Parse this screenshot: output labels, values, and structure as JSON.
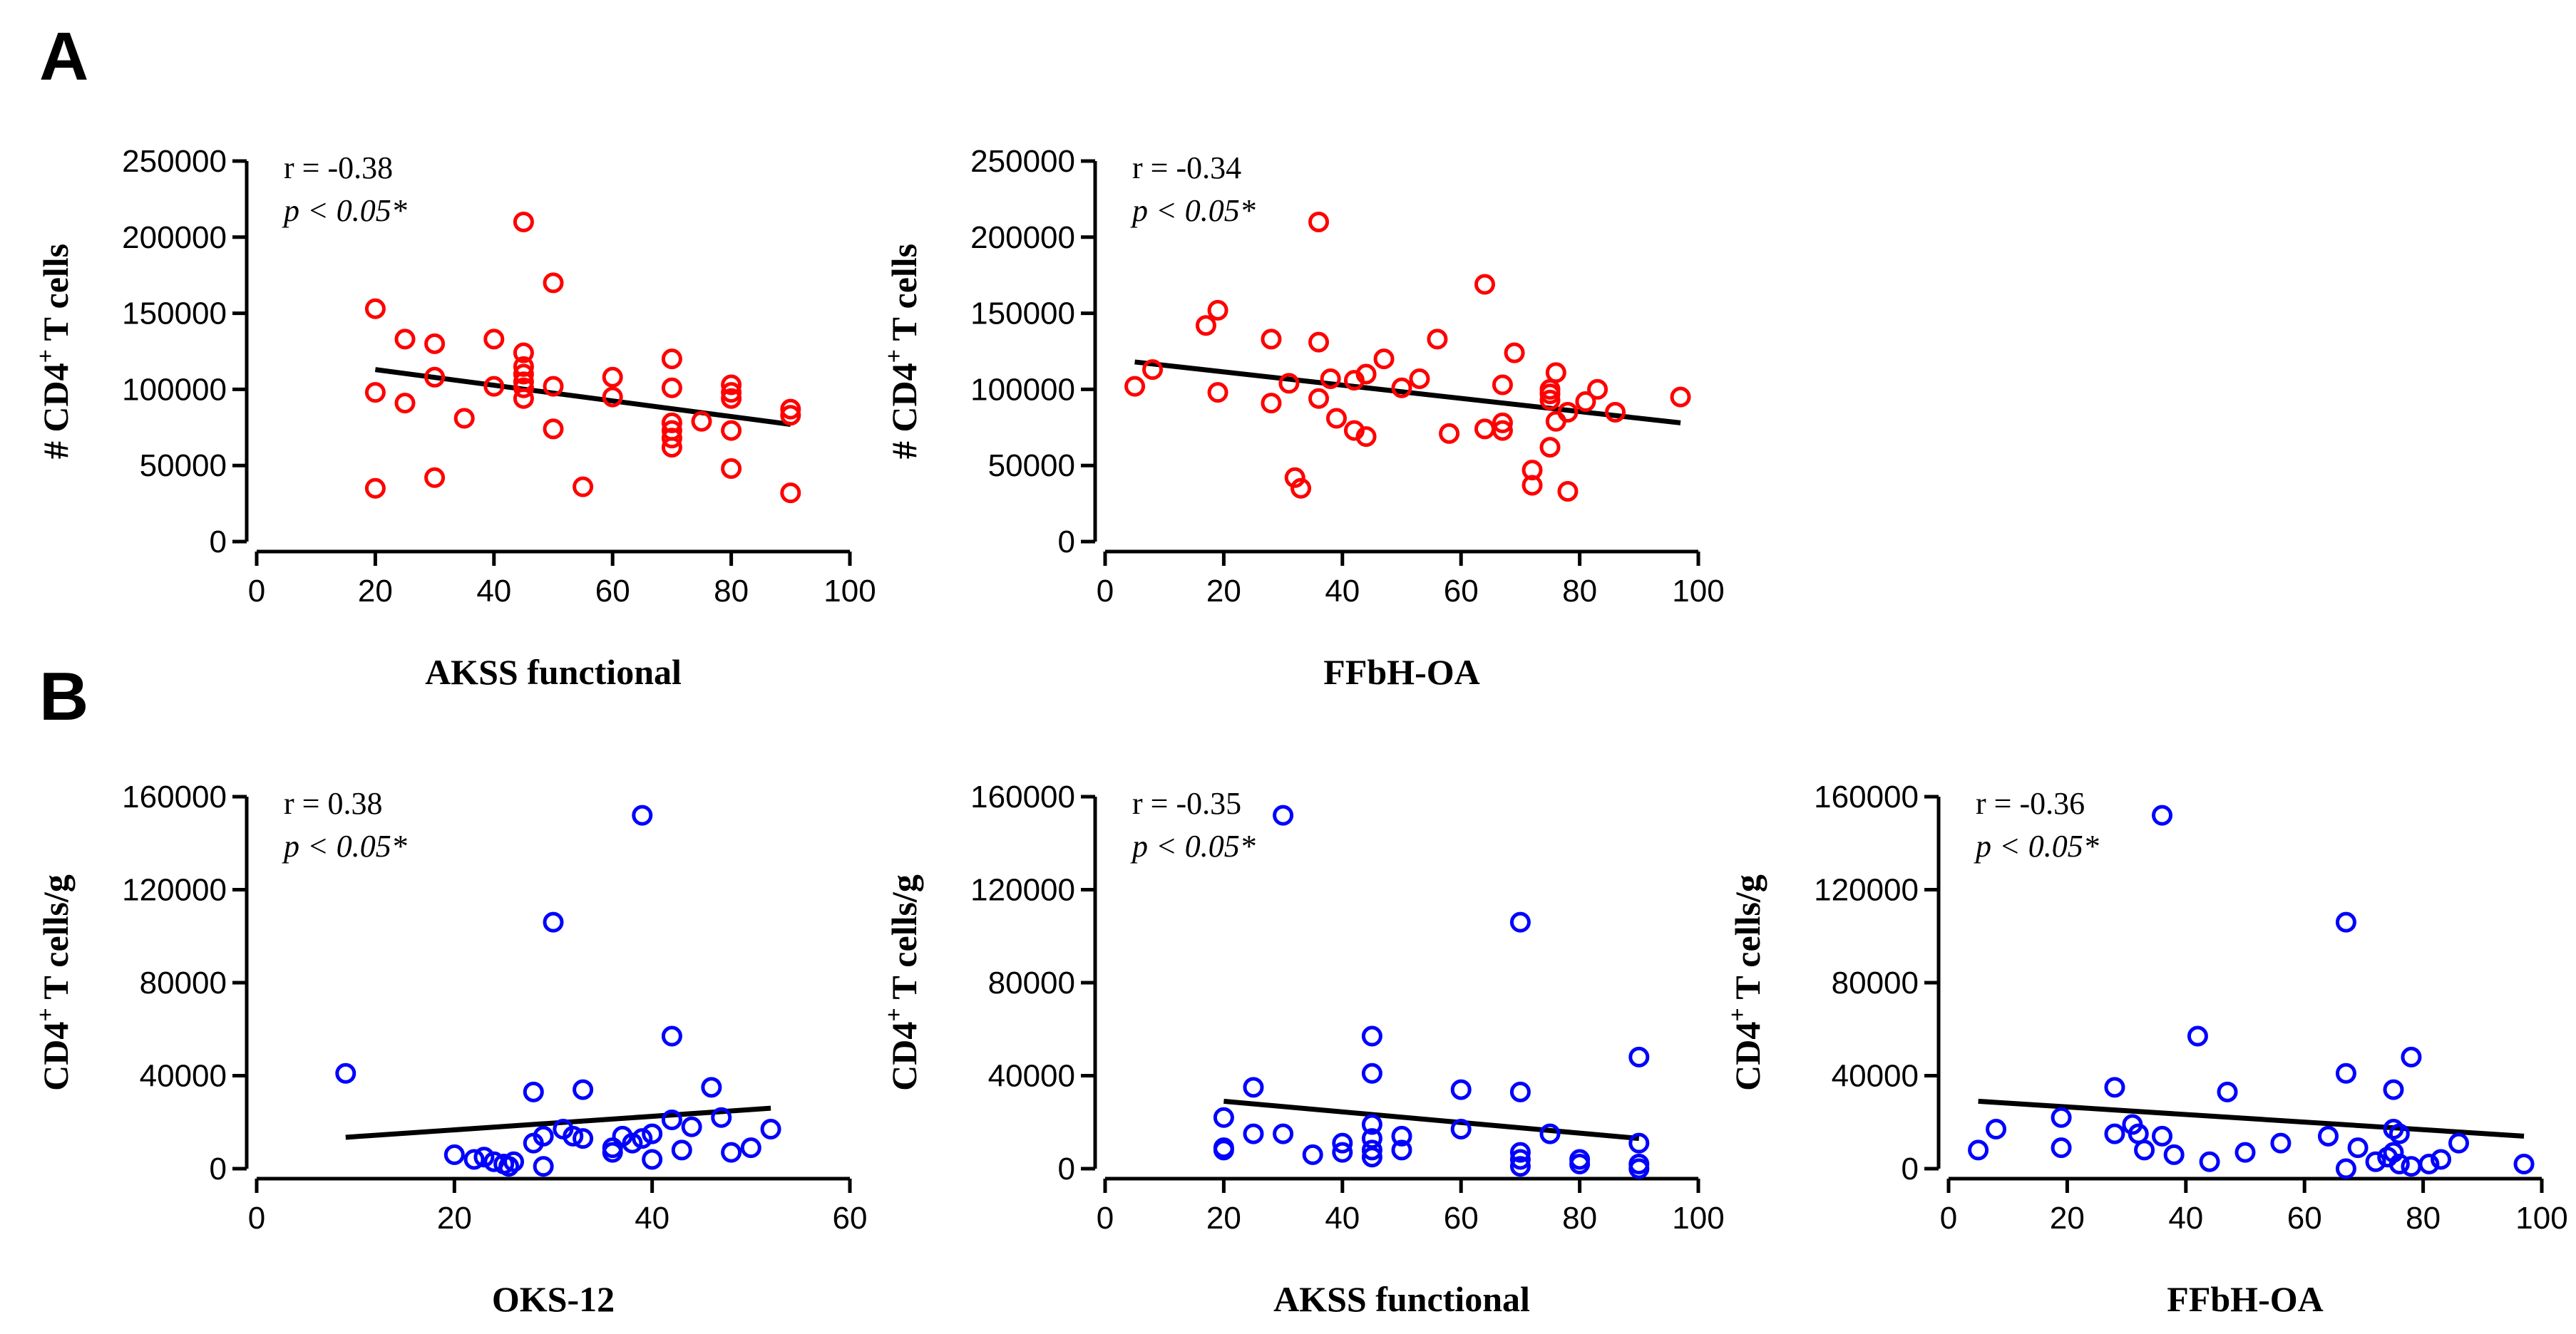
{
  "figure": {
    "panel_labels": [
      "A",
      "B"
    ]
  },
  "chart_data": [
    {
      "type": "scatter",
      "panel": "A",
      "title": "",
      "xlabel": "AKSS functional",
      "ylabel": "# CD4",
      "ylabel_sup": "+",
      "ylabel_tail": " T cells",
      "xlim": [
        0,
        100
      ],
      "ylim": [
        0,
        250000
      ],
      "xticks": [
        0,
        20,
        40,
        60,
        80,
        100
      ],
      "yticks": [
        0,
        50000,
        100000,
        150000,
        200000,
        250000
      ],
      "xtick_labels": [
        "0",
        "20",
        "40",
        "60",
        "80",
        "100"
      ],
      "ytick_labels": [
        "0",
        "50000",
        "100000",
        "150000",
        "200000",
        "250000"
      ],
      "marker_color": "#ff0000",
      "r_text": "r = -0.38",
      "p_text": "p < 0.05*",
      "trendline": {
        "x": [
          20,
          90
        ],
        "y": [
          113000,
          77000
        ]
      },
      "points": [
        [
          20,
          153000
        ],
        [
          20,
          98000
        ],
        [
          20,
          35000
        ],
        [
          25,
          133000
        ],
        [
          25,
          91000
        ],
        [
          30,
          130000
        ],
        [
          30,
          108000
        ],
        [
          30,
          42000
        ],
        [
          35,
          81000
        ],
        [
          40,
          133000
        ],
        [
          40,
          102000
        ],
        [
          45,
          210000
        ],
        [
          45,
          124000
        ],
        [
          45,
          115000
        ],
        [
          45,
          110000
        ],
        [
          45,
          105000
        ],
        [
          45,
          101000
        ],
        [
          45,
          94000
        ],
        [
          50,
          170000
        ],
        [
          50,
          102000
        ],
        [
          50,
          74000
        ],
        [
          55,
          36000
        ],
        [
          60,
          108000
        ],
        [
          60,
          95000
        ],
        [
          70,
          120000
        ],
        [
          70,
          101000
        ],
        [
          70,
          78000
        ],
        [
          70,
          73000
        ],
        [
          70,
          68000
        ],
        [
          70,
          62000
        ],
        [
          75,
          79000
        ],
        [
          80,
          103000
        ],
        [
          80,
          98000
        ],
        [
          80,
          94000
        ],
        [
          80,
          73000
        ],
        [
          80,
          48000
        ],
        [
          90,
          87000
        ],
        [
          90,
          83000
        ],
        [
          90,
          32000
        ]
      ]
    },
    {
      "type": "scatter",
      "panel": "A",
      "title": "",
      "xlabel": "FFbH-OA",
      "ylabel": "# CD4",
      "ylabel_sup": "+",
      "ylabel_tail": " T cells",
      "xlim": [
        0,
        100
      ],
      "ylim": [
        0,
        250000
      ],
      "xticks": [
        0,
        20,
        40,
        60,
        80,
        100
      ],
      "yticks": [
        0,
        50000,
        100000,
        150000,
        200000,
        250000
      ],
      "xtick_labels": [
        "0",
        "20",
        "40",
        "60",
        "80",
        "100"
      ],
      "ytick_labels": [
        "0",
        "50000",
        "100000",
        "150000",
        "200000",
        "250000"
      ],
      "marker_color": "#ff0000",
      "r_text": "r = -0.34",
      "p_text": "p < 0.05*",
      "trendline": {
        "x": [
          5,
          97
        ],
        "y": [
          118000,
          78000
        ]
      },
      "points": [
        [
          5,
          102000
        ],
        [
          8,
          113000
        ],
        [
          17,
          142000
        ],
        [
          19,
          152000
        ],
        [
          19,
          98000
        ],
        [
          28,
          133000
        ],
        [
          28,
          91000
        ],
        [
          31,
          104000
        ],
        [
          32,
          42000
        ],
        [
          33,
          35000
        ],
        [
          36,
          210000
        ],
        [
          36,
          131000
        ],
        [
          36,
          94000
        ],
        [
          38,
          107000
        ],
        [
          39,
          81000
        ],
        [
          42,
          106000
        ],
        [
          42,
          73000
        ],
        [
          44,
          110000
        ],
        [
          44,
          69000
        ],
        [
          47,
          120000
        ],
        [
          50,
          101000
        ],
        [
          53,
          107000
        ],
        [
          56,
          133000
        ],
        [
          58,
          71000
        ],
        [
          64,
          169000
        ],
        [
          64,
          74000
        ],
        [
          67,
          103000
        ],
        [
          67,
          78000
        ],
        [
          67,
          73000
        ],
        [
          69,
          124000
        ],
        [
          72,
          47000
        ],
        [
          72,
          37000
        ],
        [
          75,
          97000
        ],
        [
          75,
          93000
        ],
        [
          75,
          100000
        ],
        [
          75,
          62000
        ],
        [
          76,
          111000
        ],
        [
          76,
          79000
        ],
        [
          78,
          85000
        ],
        [
          78,
          33000
        ],
        [
          81,
          92000
        ],
        [
          83,
          100000
        ],
        [
          86,
          85000
        ],
        [
          97,
          95000
        ]
      ]
    },
    {
      "type": "scatter",
      "panel": "B",
      "title": "",
      "xlabel": "OKS-12",
      "ylabel": "CD4",
      "ylabel_sup": "+",
      "ylabel_tail": " T cells/g",
      "xlim": [
        0,
        60
      ],
      "ylim": [
        0,
        160000
      ],
      "xticks": [
        0,
        20,
        40,
        60
      ],
      "yticks": [
        0,
        40000,
        80000,
        120000,
        160000
      ],
      "xtick_labels": [
        "0",
        "20",
        "40",
        "60"
      ],
      "ytick_labels": [
        "0",
        "40000",
        "80000",
        "120000",
        "160000"
      ],
      "marker_color": "#0000ff",
      "r_text": "r = 0.38",
      "p_text": "p < 0.05*",
      "trendline": {
        "x": [
          9,
          52
        ],
        "y": [
          13500,
          26000
        ]
      },
      "points": [
        [
          9,
          41000
        ],
        [
          20,
          6000
        ],
        [
          22,
          4000
        ],
        [
          23,
          5000
        ],
        [
          24,
          3000
        ],
        [
          25,
          2000
        ],
        [
          25.5,
          1000
        ],
        [
          26,
          3000
        ],
        [
          28,
          33000
        ],
        [
          28,
          11000
        ],
        [
          29,
          14000
        ],
        [
          29,
          1000
        ],
        [
          30,
          106000
        ],
        [
          31,
          17000
        ],
        [
          32,
          14000
        ],
        [
          33,
          13000
        ],
        [
          33,
          34000
        ],
        [
          36,
          7000
        ],
        [
          36,
          9000
        ],
        [
          37,
          14000
        ],
        [
          38,
          11000
        ],
        [
          39,
          152000
        ],
        [
          39,
          13000
        ],
        [
          40,
          15000
        ],
        [
          40,
          4000
        ],
        [
          42,
          57000
        ],
        [
          42,
          21000
        ],
        [
          43,
          8000
        ],
        [
          44,
          18000
        ],
        [
          46,
          35000
        ],
        [
          47,
          22000
        ],
        [
          48,
          7000
        ],
        [
          50,
          9000
        ],
        [
          52,
          17000
        ]
      ]
    },
    {
      "type": "scatter",
      "panel": "B",
      "title": "",
      "xlabel": "AKSS functional",
      "ylabel": "CD4",
      "ylabel_sup": "+",
      "ylabel_tail": " T cells/g",
      "xlim": [
        0,
        100
      ],
      "ylim": [
        0,
        160000
      ],
      "xticks": [
        0,
        20,
        40,
        60,
        80,
        100
      ],
      "yticks": [
        0,
        40000,
        80000,
        120000,
        160000
      ],
      "xtick_labels": [
        "0",
        "20",
        "40",
        "60",
        "80",
        "100"
      ],
      "ytick_labels": [
        "0",
        "40000",
        "80000",
        "120000",
        "160000"
      ],
      "marker_color": "#0000ff",
      "r_text": "r = -0.35",
      "p_text": "p < 0.05*",
      "trendline": {
        "x": [
          20,
          90
        ],
        "y": [
          29000,
          13000
        ]
      },
      "points": [
        [
          20,
          22000
        ],
        [
          20,
          9000
        ],
        [
          20,
          8000
        ],
        [
          25,
          35000
        ],
        [
          25,
          15000
        ],
        [
          30,
          152000
        ],
        [
          30,
          15000
        ],
        [
          35,
          6000
        ],
        [
          40,
          11000
        ],
        [
          40,
          7000
        ],
        [
          45,
          57000
        ],
        [
          45,
          41000
        ],
        [
          45,
          19000
        ],
        [
          45,
          13000
        ],
        [
          45,
          8000
        ],
        [
          45,
          5000
        ],
        [
          50,
          14000
        ],
        [
          50,
          8000
        ],
        [
          60,
          34000
        ],
        [
          60,
          17000
        ],
        [
          70,
          106000
        ],
        [
          70,
          33000
        ],
        [
          70,
          7000
        ],
        [
          70,
          4000
        ],
        [
          70,
          1000
        ],
        [
          75,
          15000
        ],
        [
          80,
          4000
        ],
        [
          80,
          2000
        ],
        [
          90,
          48000
        ],
        [
          90,
          11000
        ],
        [
          90,
          2000
        ],
        [
          90,
          0
        ]
      ]
    },
    {
      "type": "scatter",
      "panel": "B",
      "title": "",
      "xlabel": "FFbH-OA",
      "ylabel": "CD4",
      "ylabel_sup": "+",
      "ylabel_tail": " T cells/g",
      "xlim": [
        0,
        100
      ],
      "ylim": [
        0,
        160000
      ],
      "xticks": [
        0,
        20,
        40,
        60,
        80,
        100
      ],
      "yticks": [
        0,
        40000,
        80000,
        120000,
        160000
      ],
      "xtick_labels": [
        "0",
        "20",
        "40",
        "60",
        "80",
        "100"
      ],
      "ytick_labels": [
        "0",
        "40000",
        "80000",
        "120000",
        "160000"
      ],
      "marker_color": "#0000ff",
      "r_text": "r = -0.36",
      "p_text": "p < 0.05*",
      "trendline": {
        "x": [
          5,
          97
        ],
        "y": [
          29000,
          14000
        ]
      },
      "points": [
        [
          5,
          8000
        ],
        [
          8,
          17000
        ],
        [
          19,
          22000
        ],
        [
          19,
          9000
        ],
        [
          28,
          35000
        ],
        [
          28,
          15000
        ],
        [
          31,
          19000
        ],
        [
          32,
          15000
        ],
        [
          33,
          8000
        ],
        [
          36,
          152000
        ],
        [
          36,
          14000
        ],
        [
          38,
          6000
        ],
        [
          42,
          57000
        ],
        [
          44,
          3000
        ],
        [
          47,
          33000
        ],
        [
          50,
          7000
        ],
        [
          56,
          11000
        ],
        [
          64,
          14000
        ],
        [
          67,
          106000
        ],
        [
          67,
          41000
        ],
        [
          67,
          0
        ],
        [
          69,
          9000
        ],
        [
          72,
          3000
        ],
        [
          74,
          5000
        ],
        [
          75,
          34000
        ],
        [
          75,
          17000
        ],
        [
          75,
          7000
        ],
        [
          76,
          15000
        ],
        [
          76,
          2000
        ],
        [
          78,
          48000
        ],
        [
          78,
          1000
        ],
        [
          81,
          2000
        ],
        [
          83,
          4000
        ],
        [
          86,
          11000
        ],
        [
          97,
          2000
        ]
      ]
    }
  ]
}
